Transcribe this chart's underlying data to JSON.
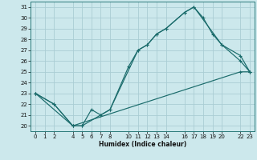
{
  "xlabel": "Humidex (Indice chaleur)",
  "bg_color": "#cce8ec",
  "grid_color": "#aacdd4",
  "line_color": "#1a6b6b",
  "xlim": [
    -0.5,
    23.5
  ],
  "ylim": [
    19.5,
    31.5
  ],
  "xticks": [
    0,
    1,
    2,
    4,
    5,
    6,
    7,
    8,
    10,
    11,
    12,
    13,
    14,
    16,
    17,
    18,
    19,
    20,
    22,
    23
  ],
  "yticks": [
    20,
    21,
    22,
    23,
    24,
    25,
    26,
    27,
    28,
    29,
    30,
    31
  ],
  "line_upper_x": [
    0,
    4,
    5,
    8,
    11,
    12,
    13,
    14,
    16,
    17,
    18,
    19,
    20,
    22,
    23
  ],
  "line_upper_y": [
    23,
    20,
    20,
    21.5,
    27,
    27.5,
    28.5,
    29,
    30.5,
    31,
    30,
    28.5,
    27.5,
    26.5,
    25
  ],
  "line_mid_x": [
    0,
    2,
    4,
    5,
    6,
    7,
    8,
    10,
    11,
    12,
    13,
    14,
    16,
    17,
    20,
    22,
    23
  ],
  "line_mid_y": [
    23,
    22,
    20,
    20,
    21.5,
    21,
    21.5,
    25.5,
    27,
    27.5,
    28.5,
    29,
    30.5,
    31,
    27.5,
    26,
    25
  ],
  "line_lower_x": [
    0,
    2,
    4,
    22,
    23
  ],
  "line_lower_y": [
    23,
    22,
    20,
    25,
    25
  ]
}
